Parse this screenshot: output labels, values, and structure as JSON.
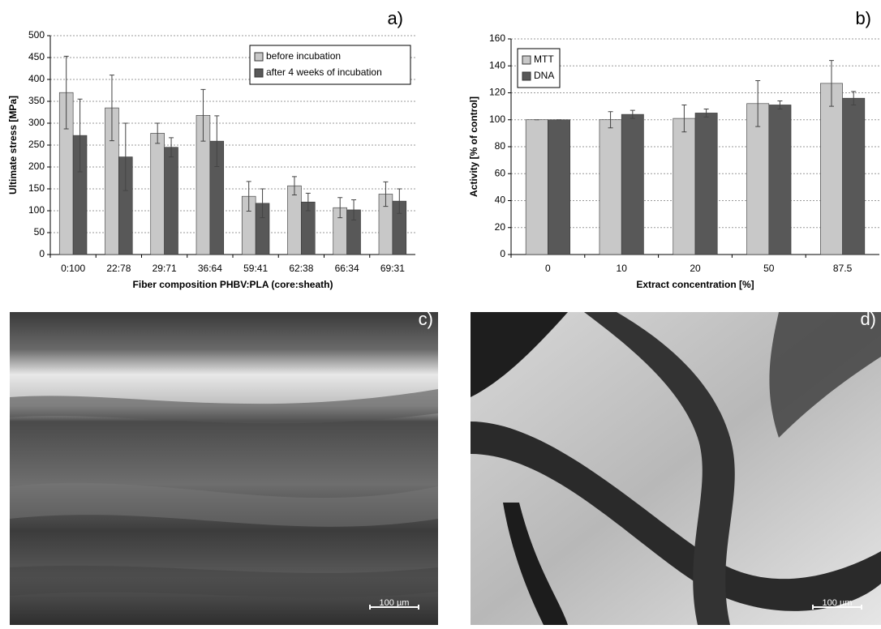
{
  "chart_data": [
    {
      "type": "bar",
      "panel_label": "a)",
      "ylabel": "Ultimate stress [MPa]",
      "xlabel": "Fiber composition PHBV:PLA (core:sheath)",
      "categories": [
        "0:100",
        "22:78",
        "29:71",
        "36:64",
        "59:41",
        "62:38",
        "66:34",
        "69:31"
      ],
      "series": [
        {
          "name": "before incubation",
          "color": "#c8c8c8",
          "values": [
            370,
            335,
            277,
            318,
            133,
            157,
            107,
            138
          ],
          "errors": [
            83,
            75,
            23,
            59,
            34,
            21,
            23,
            28
          ]
        },
        {
          "name": "after 4 weeks of incubation",
          "color": "#585858",
          "values": [
            272,
            223,
            245,
            259,
            117,
            120,
            102,
            122
          ],
          "errors": [
            83,
            77,
            22,
            58,
            33,
            20,
            23,
            28
          ]
        }
      ],
      "ylim": [
        0,
        500
      ],
      "yticks": [
        0,
        50,
        100,
        150,
        200,
        250,
        300,
        350,
        400,
        450,
        500
      ],
      "grid": true,
      "legend": "upper right"
    },
    {
      "type": "bar",
      "panel_label": "b)",
      "ylabel": "Activity [% of control]",
      "xlabel": "Extract concentration [%]",
      "categories": [
        "0",
        "10",
        "20",
        "50",
        "87.5"
      ],
      "series": [
        {
          "name": "MTT",
          "color": "#c8c8c8",
          "values": [
            100,
            100,
            101,
            112,
            127
          ],
          "errors": [
            0,
            6,
            10,
            17,
            17
          ]
        },
        {
          "name": "DNA",
          "color": "#585858",
          "values": [
            100,
            104,
            105,
            111,
            116
          ],
          "errors": [
            0,
            3,
            3,
            3,
            5
          ]
        }
      ],
      "ylim": [
        0,
        160
      ],
      "yticks": [
        0,
        20,
        40,
        60,
        80,
        100,
        120,
        140,
        160
      ],
      "grid": true,
      "legend": "upper left"
    }
  ],
  "images": [
    {
      "label": "c)",
      "scale_bar": "100 µm"
    },
    {
      "label": "d)",
      "scale_bar": "100 µm"
    }
  ]
}
